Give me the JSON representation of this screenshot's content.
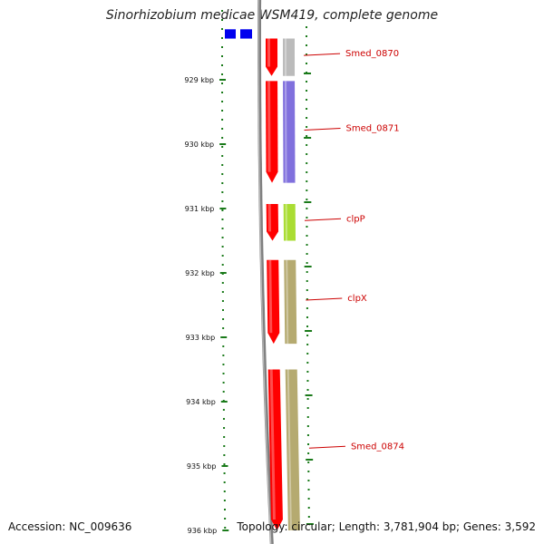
{
  "title": "Sinorhizobium medicae WSM419, complete genome",
  "footer": {
    "accession": "Accession: NC_009636",
    "topology": "Topology: circular; Length: 3,781,904 bp; Genes: 3,592"
  },
  "colors": {
    "backbone": "#808080",
    "tick": "#1a7a1a",
    "gene_forward": "#ff0000",
    "label": "#cc0000",
    "top_gene": "#0000ee"
  },
  "map": {
    "range_kbp": [
      928.3,
      936.0
    ],
    "ruler": [
      {
        "kbp": 929,
        "label": "929 kbp"
      },
      {
        "kbp": 930,
        "label": "930 kbp"
      },
      {
        "kbp": 931,
        "label": "931 kbp"
      },
      {
        "kbp": 932,
        "label": "932 kbp"
      },
      {
        "kbp": 933,
        "label": "933 kbp"
      },
      {
        "kbp": 934,
        "label": "934 kbp"
      },
      {
        "kbp": 935,
        "label": "935 kbp"
      },
      {
        "kbp": 936,
        "label": "936 kbp"
      }
    ],
    "genes": [
      {
        "label": "",
        "start_kbp": 928.3,
        "end_kbp": 928.36,
        "color": "#0000ee"
      },
      {
        "label": "Smed_0870",
        "start_kbp": 928.36,
        "end_kbp": 928.94,
        "color": "#bbbbbb"
      },
      {
        "label": "Smed_0871",
        "start_kbp": 929.02,
        "end_kbp": 930.6,
        "color": "#8070dd"
      },
      {
        "label": "clpP",
        "start_kbp": 930.93,
        "end_kbp": 931.5,
        "color": "#aadd33"
      },
      {
        "label": "clpX",
        "start_kbp": 931.8,
        "end_kbp": 933.1,
        "color": "#b5aa70"
      },
      {
        "label": "Smed_0874",
        "start_kbp": 933.5,
        "end_kbp": 936.0,
        "color": "#b5aa70"
      }
    ]
  }
}
